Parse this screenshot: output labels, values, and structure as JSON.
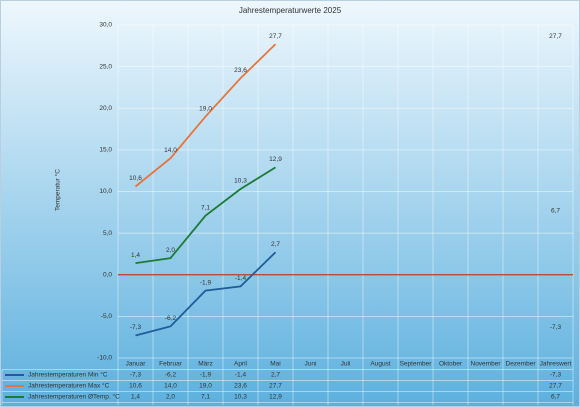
{
  "chart_data": {
    "type": "line",
    "title": "Jahrestemperaturwerte 2025",
    "y_label": "Temperatur °C",
    "categories": [
      "Januar",
      "Februar",
      "März",
      "April",
      "Mai",
      "Juni",
      "Juli",
      "August",
      "September",
      "Oktober",
      "November",
      "Dezember",
      "Jahreswert"
    ],
    "series": [
      {
        "name": "Jahrestemperaturen Min °C",
        "color": "#1f5c99",
        "values": [
          -7.3,
          -6.2,
          -1.9,
          -1.4,
          2.7,
          null,
          null,
          null,
          null,
          null,
          null,
          null,
          -7.3
        ],
        "value_labels": [
          "-7,3",
          "-6,2",
          "-1,9",
          "-1,4",
          "2,7",
          null,
          null,
          null,
          null,
          null,
          null,
          null,
          "-7,3"
        ]
      },
      {
        "name": "Jahrestemperaturen Max °C",
        "color": "#e8743b",
        "values": [
          10.6,
          14.0,
          19.0,
          23.6,
          27.7,
          null,
          null,
          null,
          null,
          null,
          null,
          null,
          27.7
        ],
        "value_labels": [
          "10,6",
          "14,0",
          "19,0",
          "23,6",
          "27,7",
          null,
          null,
          null,
          null,
          null,
          null,
          null,
          "27,7"
        ]
      },
      {
        "name": "Jahrestemperaturen ØTemp. °C",
        "color": "#1e7a34",
        "values": [
          1.4,
          2.0,
          7.1,
          10.3,
          12.9,
          null,
          null,
          null,
          null,
          null,
          null,
          null,
          6.7
        ],
        "value_labels": [
          "1,4",
          "2,0",
          "7,1",
          "10,3",
          "12,9",
          null,
          null,
          null,
          null,
          null,
          null,
          null,
          "6,7"
        ]
      }
    ],
    "ylim": [
      -10,
      30
    ],
    "yticks": [
      {
        "value": -10,
        "label": "-10,0"
      },
      {
        "value": -5,
        "label": "-5,0"
      },
      {
        "value": 0,
        "label": "0,0"
      },
      {
        "value": 5,
        "label": "5,0"
      },
      {
        "value": 10,
        "label": "10,0"
      },
      {
        "value": 15,
        "label": "15,0"
      },
      {
        "value": 20,
        "label": "20,0"
      },
      {
        "value": 25,
        "label": "25,0"
      },
      {
        "value": 30,
        "label": "30,0"
      }
    ],
    "grid": true,
    "hline": {
      "value": 0,
      "color": "#c0392b"
    }
  }
}
